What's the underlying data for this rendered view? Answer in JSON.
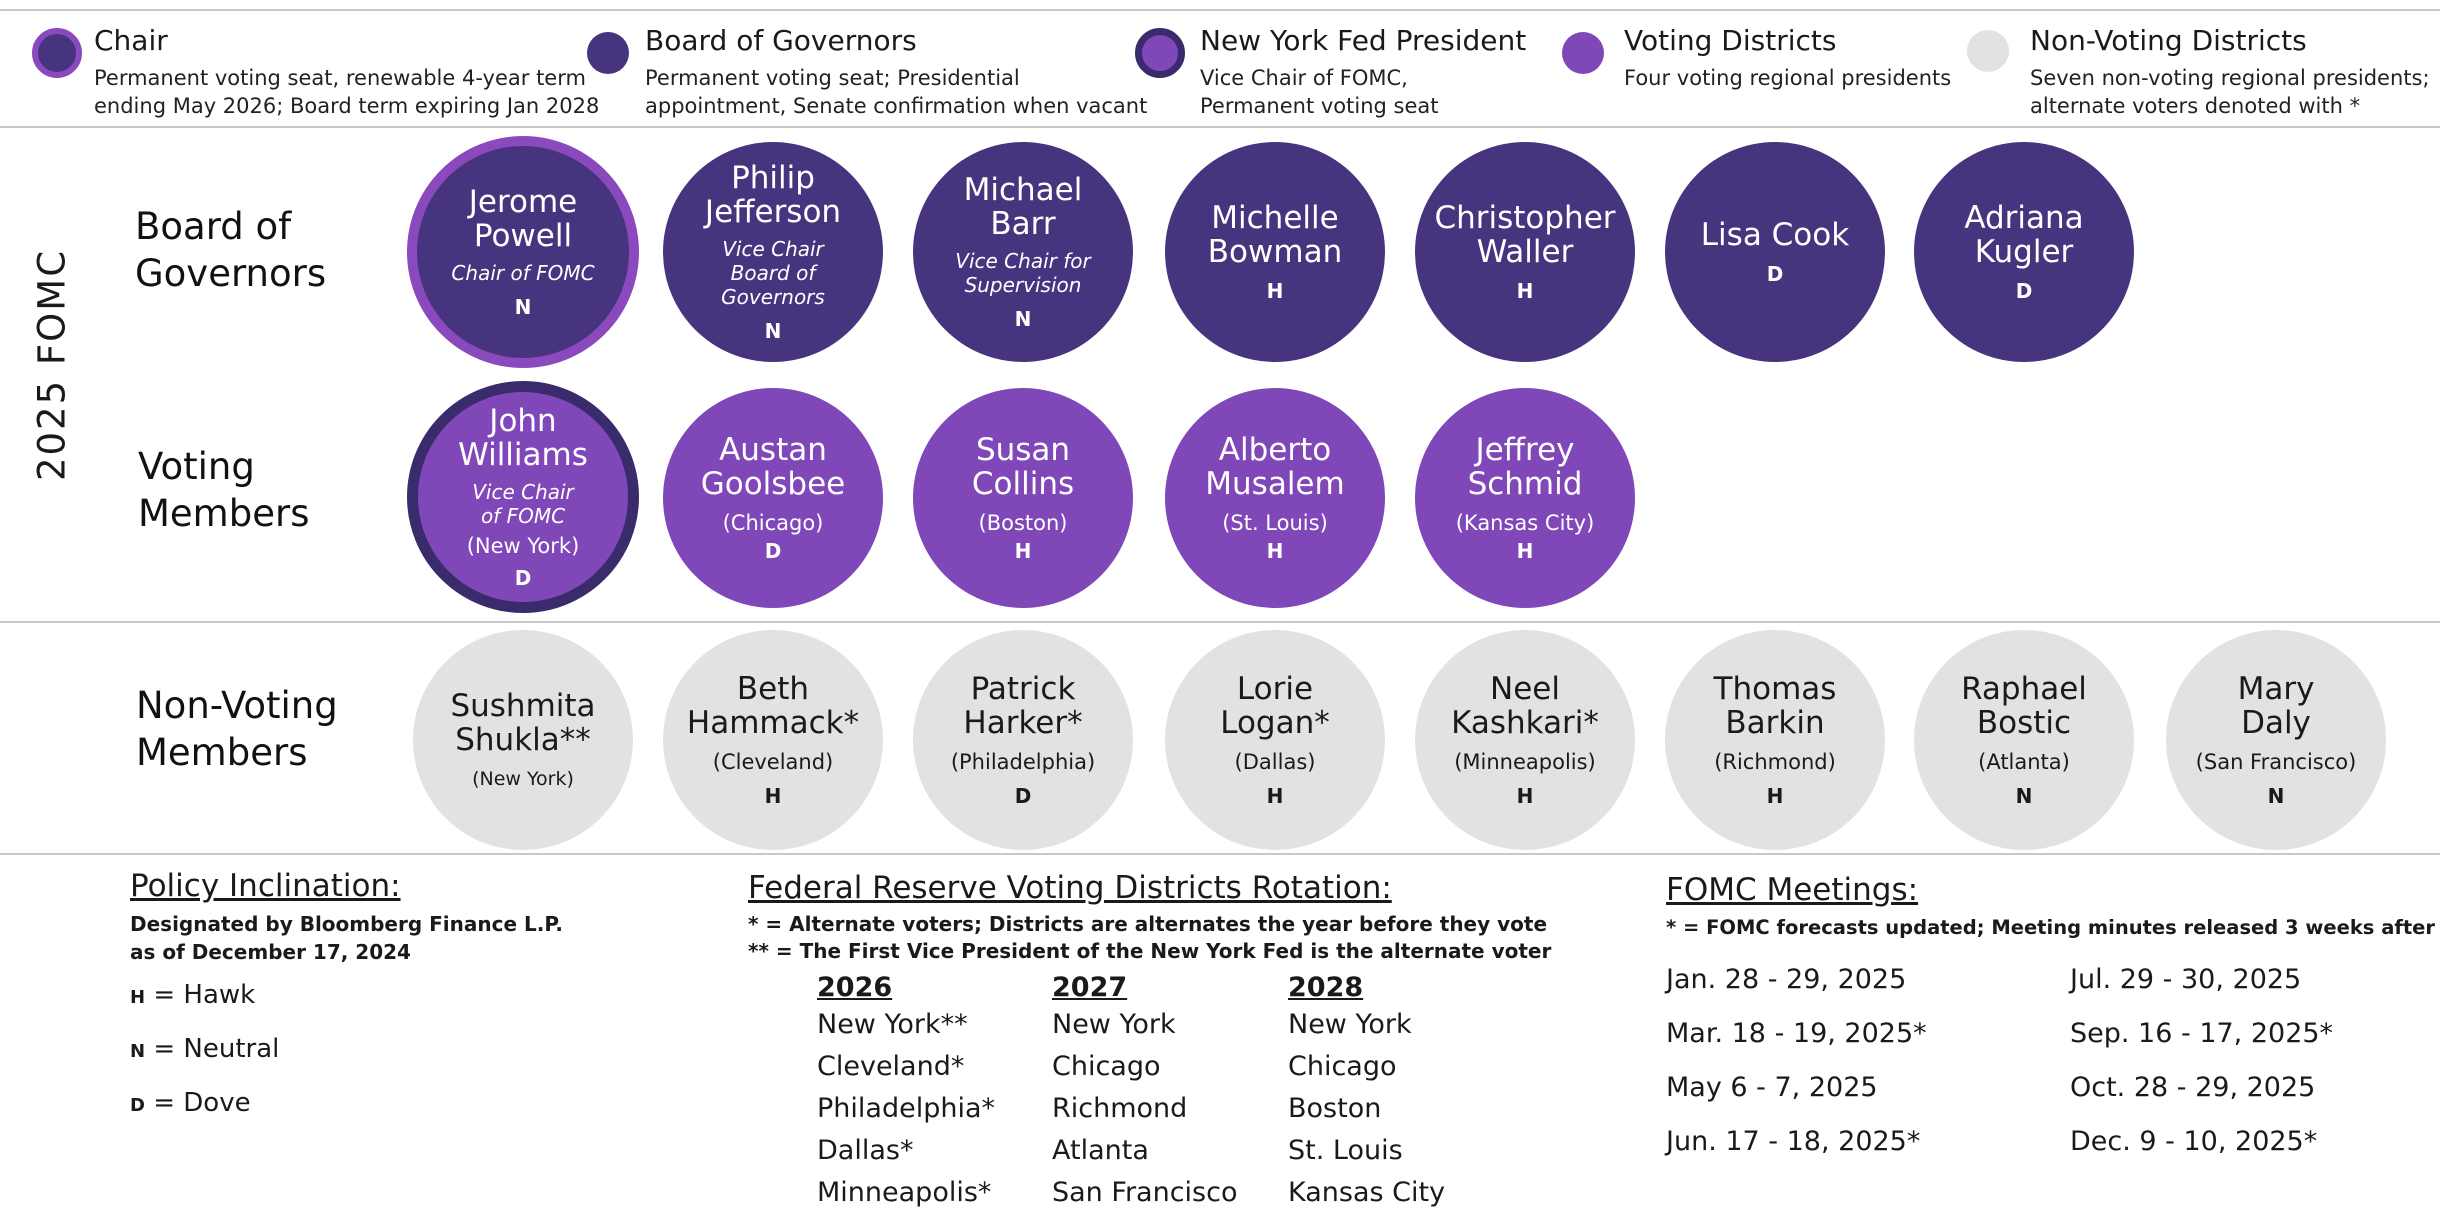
{
  "legend": [
    {
      "title": "Chair",
      "desc": "Permanent voting seat, renewable 4-year term\nending May 2026; Board term expiring Jan 2028"
    },
    {
      "title": "Board of Governors",
      "desc": "Permanent voting seat; Presidential\nappointment, Senate confirmation when vacant"
    },
    {
      "title": "New York Fed President",
      "desc": "Vice Chair of FOMC,\nPermanent voting seat"
    },
    {
      "title": "Voting Districts",
      "desc": "Four voting regional presidents"
    },
    {
      "title": "Non-Voting Districts",
      "desc": "Seven non-voting regional presidents;\nalternate voters denoted with *"
    }
  ],
  "year_label": "2025 FOMC",
  "rows": {
    "board": {
      "label": "Board of\nGovernors",
      "members": [
        {
          "name": "Jerome\nPowell",
          "role": "Chair of FOMC",
          "lean": "N"
        },
        {
          "name": "Philip\nJefferson",
          "role": "Vice Chair\nBoard of\nGovernors",
          "lean": "N"
        },
        {
          "name": "Michael\nBarr",
          "role": "Vice Chair for\nSupervision",
          "lean": "N"
        },
        {
          "name": "Michelle\nBowman",
          "lean": "H"
        },
        {
          "name": "Christopher\nWaller",
          "lean": "H"
        },
        {
          "name": "Lisa Cook",
          "lean": "D"
        },
        {
          "name": "Adriana\nKugler",
          "lean": "D"
        }
      ]
    },
    "voting": {
      "label": "Voting\nMembers",
      "members": [
        {
          "name": "John\nWilliams",
          "role": "Vice Chair\nof FOMC",
          "city": "(New York)",
          "lean": "D"
        },
        {
          "name": "Austan\nGoolsbee",
          "city": "(Chicago)",
          "lean": "D"
        },
        {
          "name": "Susan\nCollins",
          "city": "(Boston)",
          "lean": "H"
        },
        {
          "name": "Alberto\nMusalem",
          "city": "(St. Louis)",
          "lean": "H"
        },
        {
          "name": "Jeffrey\nSchmid",
          "city": "(Kansas City)",
          "lean": "H"
        }
      ]
    },
    "nonvoting": {
      "label": "Non-Voting\nMembers",
      "members": [
        {
          "name": "Sushmita\nShukla**",
          "city": "(New York)",
          "lean": ""
        },
        {
          "name": "Beth\nHammack*",
          "city": "(Cleveland)",
          "lean": "H"
        },
        {
          "name": "Patrick\nHarker*",
          "city": "(Philadelphia)",
          "lean": "D"
        },
        {
          "name": "Lorie\nLogan*",
          "city": "(Dallas)",
          "lean": "H"
        },
        {
          "name": "Neel\nKashkari*",
          "city": "(Minneapolis)",
          "lean": "H"
        },
        {
          "name": "Thomas\nBarkin",
          "city": "(Richmond)",
          "lean": "H"
        },
        {
          "name": "Raphael\nBostic",
          "city": "(Atlanta)",
          "lean": "N"
        },
        {
          "name": "Mary\nDaly",
          "city": "(San Francisco)",
          "lean": "N"
        }
      ]
    }
  },
  "policy": {
    "title": "Policy Inclination:",
    "note": "Designated by Bloomberg Finance L.P.\nas of December 17, 2024",
    "keys": [
      {
        "letter": "H",
        "text": " = Hawk"
      },
      {
        "letter": "N",
        "text": " = Neutral"
      },
      {
        "letter": "D",
        "text": " = Dove"
      }
    ]
  },
  "rotation": {
    "title": "Federal Reserve Voting Districts Rotation:",
    "note1": "* = Alternate voters; Districts are alternates the year before they vote",
    "note2": "** = The First Vice President of the New York Fed is the alternate voter",
    "columns": [
      {
        "year": "2026",
        "items": [
          "New York**",
          "Cleveland*",
          "Philadelphia*",
          "Dallas*",
          "Minneapolis*"
        ]
      },
      {
        "year": "2027",
        "items": [
          "New York",
          "Chicago",
          "Richmond",
          "Atlanta",
          "San Francisco"
        ]
      },
      {
        "year": "2028",
        "items": [
          "New York",
          "Chicago",
          "Boston",
          "St. Louis",
          "Kansas City"
        ]
      }
    ]
  },
  "meetings": {
    "title": "FOMC Meetings:",
    "note": "* = FOMC forecasts updated; Meeting minutes released 3 weeks after",
    "left": [
      "Jan. 28 - 29, 2025",
      "Mar. 18 - 19, 2025*",
      "May 6 - 7, 2025",
      "Jun. 17 - 18, 2025*"
    ],
    "right": [
      "Jul. 29 - 30, 2025",
      "Sep. 16 - 17, 2025*",
      "Oct. 28 - 29, 2025",
      "Dec. 9 - 10, 2025*"
    ]
  },
  "colors": {
    "board": "#46347f",
    "voting": "#8047b9",
    "chair_ring": "#8a49bd",
    "nyfed_ring": "#3a2b6c",
    "nonvoting": "#e2e2e2"
  }
}
